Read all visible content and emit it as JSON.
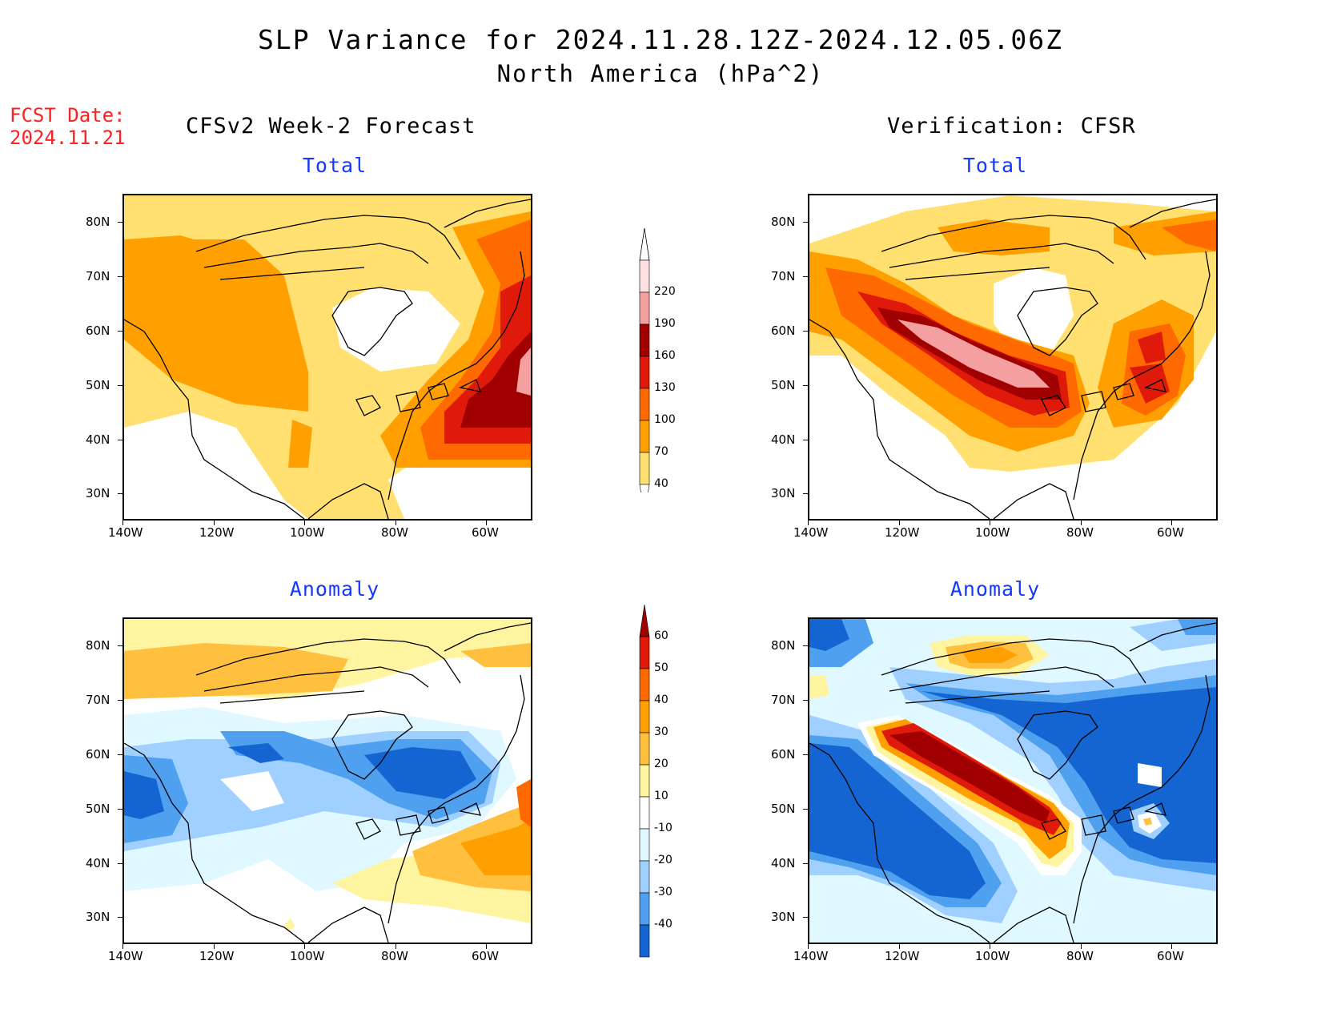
{
  "title": "SLP Variance for 2024.11.28.12Z-2024.12.05.06Z",
  "subtitle": "North America (hPa^2)",
  "fcst_label": "FCST Date:",
  "fcst_date": "2024.11.21",
  "left_column": "CFSv2 Week-2 Forecast",
  "right_column": "Verification: CFSR",
  "panel_titles": {
    "total": "Total",
    "anomaly": "Anomaly"
  },
  "lat_labels": [
    "80N",
    "70N",
    "60N",
    "50N",
    "40N",
    "30N"
  ],
  "lon_labels": [
    "140W",
    "120W",
    "100W",
    "80W",
    "60W"
  ],
  "total_colorbar": {
    "levels": [
      "220",
      "190",
      "160",
      "130",
      "100",
      "70",
      "40"
    ],
    "colors": [
      "#ffe0e0",
      "#f4a0a0",
      "#a00000",
      "#e01a0a",
      "#ff6a00",
      "#ffa000",
      "#ffe070"
    ]
  },
  "anomaly_colorbar": {
    "levels": [
      "60",
      "50",
      "40",
      "30",
      "20",
      "10",
      "-10",
      "-20",
      "-30",
      "-40"
    ],
    "colors": [
      "#a00000",
      "#e01a0a",
      "#ff6a00",
      "#ffa000",
      "#ffc040",
      "#fff4a0",
      "#ffffff",
      "#e0f8ff",
      "#a0d0ff",
      "#50a0f0",
      "#1464d2"
    ]
  },
  "palette": {
    "white": "#ffffff",
    "pale_yellow": "#ffe070",
    "orange": "#ffa000",
    "dark_orange": "#ff6a00",
    "red": "#e01a0a",
    "dark_red": "#a00000",
    "pink": "#f4a0a0",
    "light_pink": "#ffe0e0",
    "anom_yellow": "#fff4a0",
    "anom_lt_orange": "#ffc040",
    "anom_cyan": "#e0f8ff",
    "anom_lt_blue": "#a0d0ff",
    "anom_blue": "#50a0f0",
    "anom_dk_blue": "#1464d2"
  }
}
